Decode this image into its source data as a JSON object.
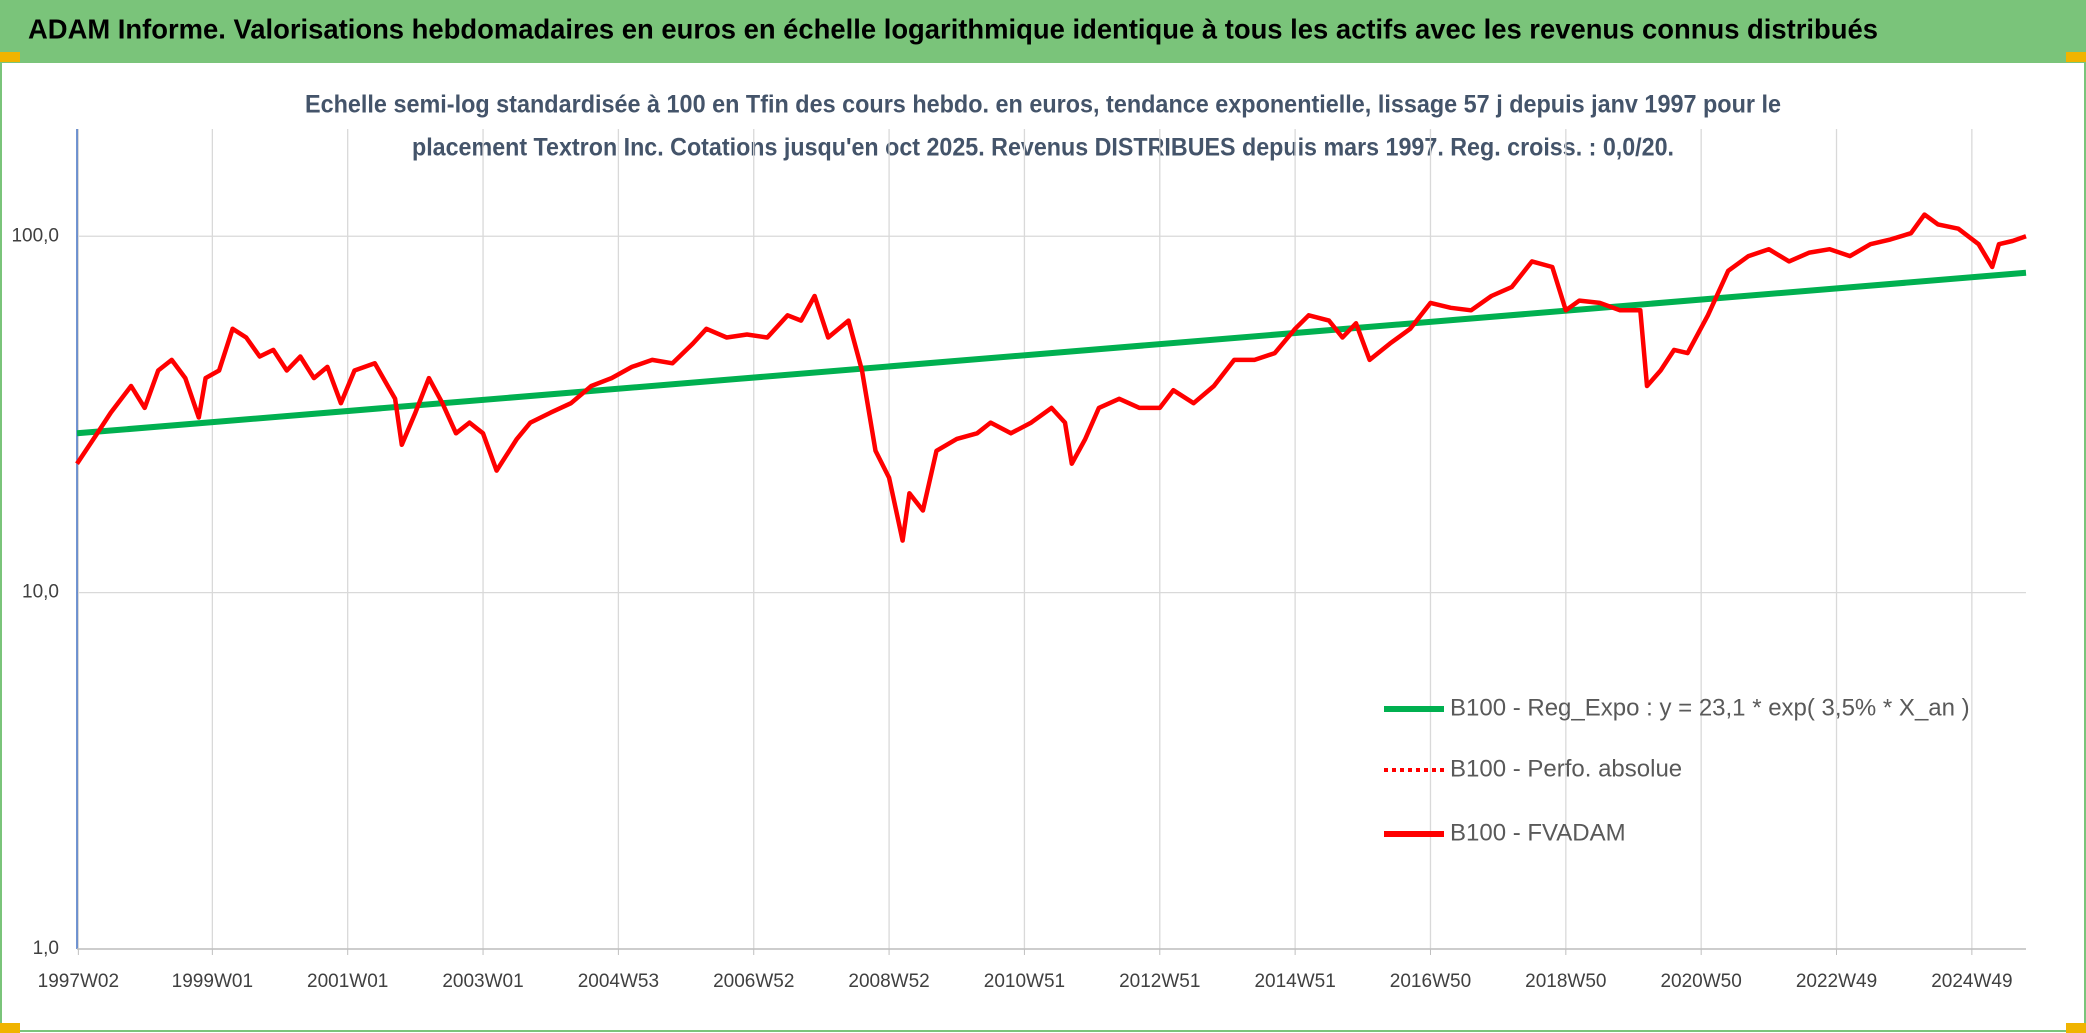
{
  "chart_data": {
    "type": "line",
    "title": "ADAM Informe. Valorisations hebdomadaires en euros en échelle logarithmique identique à tous les actifs avec les revenus connus distribués",
    "subtitle": [
      "Echelle semi-log standardisée à 100 en Tfin des cours hebdo. en euros, tendance exponentielle, lissage 57 j depuis janv 1997 pour le",
      "placement Textron Inc. Cotations jusqu'en oct 2025. Revenus DISTRIBUES depuis mars 1997. Reg. croiss. : 0,0/20."
    ],
    "log_scale": true,
    "grid": true,
    "legend": "lower right",
    "xlim": [
      1997.0,
      2025.8
    ],
    "xticks": [
      {
        "value": 1997.02,
        "label": "1997W02"
      },
      {
        "value": 1999.0,
        "label": "1999W01"
      },
      {
        "value": 2001.0,
        "label": "2001W01"
      },
      {
        "value": 2003.0,
        "label": "2003W01"
      },
      {
        "value": 2005.0,
        "label": "2004W53"
      },
      {
        "value": 2007.0,
        "label": "2006W52"
      },
      {
        "value": 2009.0,
        "label": "2008W52"
      },
      {
        "value": 2011.0,
        "label": "2010W51"
      },
      {
        "value": 2013.0,
        "label": "2012W51"
      },
      {
        "value": 2015.0,
        "label": "2014W51"
      },
      {
        "value": 2017.0,
        "label": "2016W50"
      },
      {
        "value": 2019.0,
        "label": "2018W50"
      },
      {
        "value": 2021.0,
        "label": "2020W50"
      },
      {
        "value": 2023.0,
        "label": "2022W49"
      },
      {
        "value": 2025.0,
        "label": "2024W49"
      }
    ],
    "ylim": [
      1,
      200
    ],
    "yticks": [
      {
        "value": 1,
        "label": "1,0"
      },
      {
        "value": 10,
        "label": "10,0"
      },
      {
        "value": 100,
        "label": "100,0"
      }
    ],
    "series": [
      {
        "name": "B100 - Reg_Expo : y = 23,1 * exp( 3,5% *  X_an )",
        "color": "#00b050",
        "style": "solid",
        "x": [
          1997.0,
          2025.8
        ],
        "values": [
          28,
          79
        ]
      },
      {
        "name": "B100 - Perfo. absolue",
        "color": "#ff0000",
        "style": "dotted",
        "x": [],
        "values": []
      },
      {
        "name": "B100 - FVADAM",
        "color": "#ff0000",
        "style": "solid",
        "x": [
          1997.0,
          1997.3,
          1997.5,
          1997.8,
          1998.0,
          1998.2,
          1998.4,
          1998.6,
          1998.8,
          1998.9,
          1999.1,
          1999.3,
          1999.5,
          1999.7,
          1999.9,
          2000.1,
          2000.3,
          2000.5,
          2000.7,
          2000.9,
          2001.1,
          2001.4,
          2001.7,
          2001.8,
          2002.0,
          2002.2,
          2002.4,
          2002.6,
          2002.8,
          2003.0,
          2003.2,
          2003.5,
          2003.7,
          2004.0,
          2004.3,
          2004.6,
          2004.9,
          2005.2,
          2005.5,
          2005.8,
          2006.1,
          2006.3,
          2006.6,
          2006.9,
          2007.2,
          2007.5,
          2007.7,
          2007.9,
          2008.1,
          2008.4,
          2008.6,
          2008.8,
          2009.0,
          2009.2,
          2009.3,
          2009.5,
          2009.7,
          2010.0,
          2010.3,
          2010.5,
          2010.8,
          2011.1,
          2011.4,
          2011.6,
          2011.7,
          2011.9,
          2012.1,
          2012.4,
          2012.7,
          2013.0,
          2013.2,
          2013.5,
          2013.8,
          2014.1,
          2014.4,
          2014.7,
          2015.0,
          2015.2,
          2015.5,
          2015.7,
          2015.9,
          2016.1,
          2016.4,
          2016.7,
          2017.0,
          2017.3,
          2017.6,
          2017.9,
          2018.2,
          2018.5,
          2018.8,
          2019.0,
          2019.2,
          2019.5,
          2019.8,
          2020.1,
          2020.2,
          2020.4,
          2020.6,
          2020.8,
          2021.1,
          2021.4,
          2021.7,
          2022.0,
          2022.3,
          2022.6,
          2022.9,
          2023.2,
          2023.5,
          2023.8,
          2024.1,
          2024.3,
          2024.5,
          2024.8,
          2025.1,
          2025.3,
          2025.4,
          2025.6,
          2025.8
        ],
        "values": [
          23,
          28,
          32,
          38,
          33,
          42,
          45,
          40,
          31,
          40,
          42,
          55,
          52,
          46,
          48,
          42,
          46,
          40,
          43,
          34,
          42,
          44,
          35,
          26,
          32,
          40,
          34,
          28,
          30,
          28,
          22,
          27,
          30,
          32,
          34,
          38,
          40,
          43,
          45,
          44,
          50,
          55,
          52,
          53,
          52,
          60,
          58,
          68,
          52,
          58,
          42,
          25,
          21,
          14,
          19,
          17,
          25,
          27,
          28,
          30,
          28,
          30,
          33,
          30,
          23,
          27,
          33,
          35,
          33,
          33,
          37,
          34,
          38,
          45,
          45,
          47,
          55,
          60,
          58,
          52,
          57,
          45,
          50,
          55,
          65,
          63,
          62,
          68,
          72,
          85,
          82,
          62,
          66,
          65,
          62,
          62,
          38,
          42,
          48,
          47,
          60,
          80,
          88,
          92,
          85,
          90,
          92,
          88,
          95,
          98,
          102,
          115,
          108,
          105,
          95,
          82,
          95,
          97,
          100
        ]
      }
    ]
  }
}
